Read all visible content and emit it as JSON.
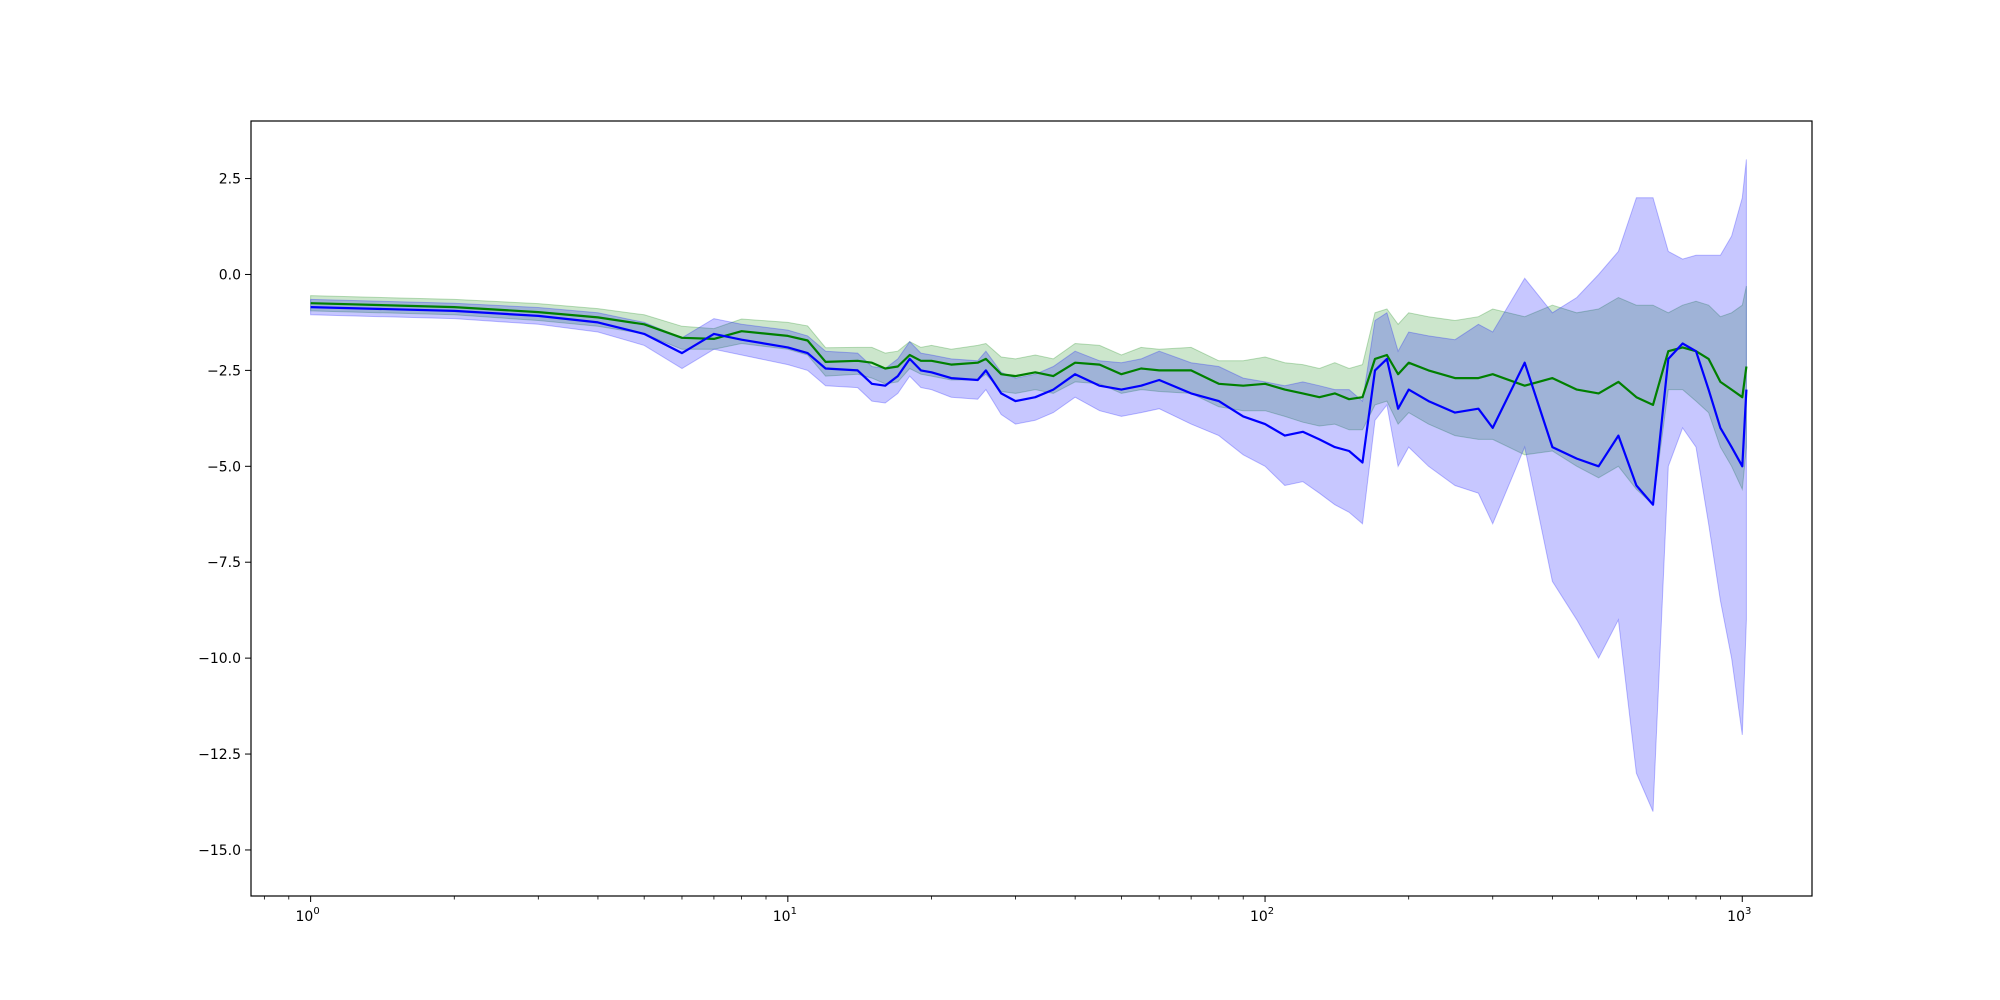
{
  "chart_data": {
    "type": "line",
    "title": "",
    "xlabel": "",
    "ylabel": "",
    "x_scale": "log",
    "xlim": [
      0.75,
      1400
    ],
    "ylim": [
      -16.2,
      4.0
    ],
    "grid": false,
    "legend": "none",
    "x_ticks": [
      {
        "value": 1,
        "base": "10",
        "exp": "0"
      },
      {
        "value": 10,
        "base": "10",
        "exp": "1"
      },
      {
        "value": 100,
        "base": "10",
        "exp": "2"
      },
      {
        "value": 1000,
        "base": "10",
        "exp": "3"
      }
    ],
    "y_ticks": [
      {
        "value": 2.5,
        "label": "2.5"
      },
      {
        "value": 0,
        "label": "0.0"
      },
      {
        "value": -2.5,
        "label": "−2.5"
      },
      {
        "value": -5,
        "label": "−5.0"
      },
      {
        "value": -7.5,
        "label": "−7.5"
      },
      {
        "value": -10,
        "label": "−10.0"
      },
      {
        "value": -12.5,
        "label": "−12.5"
      },
      {
        "value": -15,
        "label": "−15.0"
      }
    ],
    "series": [
      {
        "color": "#008000",
        "band_color": "#008000",
        "x": [
          1,
          2,
          3,
          4,
          5,
          6,
          7,
          8,
          10,
          11,
          12,
          14,
          15,
          16,
          17,
          18,
          19,
          20,
          22,
          25,
          26,
          28,
          30,
          33,
          36,
          40,
          45,
          50,
          55,
          60,
          70,
          80,
          90,
          100,
          110,
          120,
          130,
          140,
          150,
          160,
          170,
          180,
          190,
          200,
          220,
          250,
          280,
          300,
          350,
          400,
          450,
          500,
          550,
          600,
          650,
          700,
          750,
          800,
          850,
          900,
          950,
          1000,
          1020
        ],
        "values": [
          -0.75,
          -0.85,
          -0.98,
          -1.12,
          -1.3,
          -1.65,
          -1.68,
          -1.48,
          -1.6,
          -1.72,
          -2.28,
          -2.25,
          -2.3,
          -2.45,
          -2.4,
          -2.1,
          -2.25,
          -2.25,
          -2.35,
          -2.3,
          -2.2,
          -2.6,
          -2.65,
          -2.55,
          -2.65,
          -2.3,
          -2.35,
          -2.6,
          -2.45,
          -2.5,
          -2.5,
          -2.85,
          -2.9,
          -2.85,
          -3.0,
          -3.1,
          -3.2,
          -3.1,
          -3.25,
          -3.2,
          -2.2,
          -2.1,
          -2.6,
          -2.3,
          -2.5,
          -2.7,
          -2.7,
          -2.6,
          -2.9,
          -2.7,
          -3.0,
          -3.1,
          -2.8,
          -3.2,
          -3.4,
          -2.0,
          -1.9,
          -2.0,
          -2.2,
          -2.8,
          -3.0,
          -3.2,
          -2.4
        ],
        "lower": [
          -0.95,
          -1.05,
          -1.2,
          -1.35,
          -1.55,
          -1.95,
          -1.95,
          -1.8,
          -1.95,
          -2.1,
          -2.65,
          -2.6,
          -2.7,
          -2.85,
          -2.8,
          -2.45,
          -2.6,
          -2.65,
          -2.75,
          -2.75,
          -2.6,
          -3.05,
          -3.1,
          -3.0,
          -3.1,
          -2.8,
          -2.85,
          -3.1,
          -3.0,
          -3.05,
          -3.1,
          -3.45,
          -3.55,
          -3.55,
          -3.7,
          -3.85,
          -3.95,
          -3.9,
          -4.05,
          -4.05,
          -3.4,
          -3.3,
          -3.9,
          -3.6,
          -3.9,
          -4.2,
          -4.3,
          -4.3,
          -4.7,
          -4.6,
          -5.0,
          -5.3,
          -5.0,
          -5.6,
          -6.0,
          -3.0,
          -3.0,
          -3.3,
          -3.6,
          -4.5,
          -5.0,
          -5.6,
          -4.5
        ],
        "upper": [
          -0.55,
          -0.65,
          -0.76,
          -0.89,
          -1.05,
          -1.35,
          -1.41,
          -1.16,
          -1.25,
          -1.34,
          -1.91,
          -1.9,
          -1.9,
          -2.05,
          -2.0,
          -1.75,
          -1.9,
          -1.85,
          -1.95,
          -1.85,
          -1.8,
          -2.15,
          -2.2,
          -2.1,
          -2.2,
          -1.8,
          -1.85,
          -2.1,
          -1.9,
          -1.95,
          -1.9,
          -2.25,
          -2.25,
          -2.15,
          -2.3,
          -2.35,
          -2.45,
          -2.3,
          -2.45,
          -2.35,
          -1.0,
          -0.9,
          -1.3,
          -1.0,
          -1.1,
          -1.2,
          -1.1,
          -0.9,
          -1.1,
          -0.8,
          -1.0,
          -0.9,
          -0.6,
          -0.8,
          -0.8,
          -1.0,
          -0.8,
          -0.7,
          -0.8,
          -1.1,
          -1.0,
          -0.8,
          -0.3
        ]
      },
      {
        "color": "#0000ff",
        "band_color": "#0000ff",
        "x": [
          1,
          2,
          3,
          4,
          5,
          6,
          7,
          8,
          10,
          11,
          12,
          14,
          15,
          16,
          17,
          18,
          19,
          20,
          22,
          25,
          26,
          28,
          30,
          33,
          36,
          40,
          45,
          50,
          55,
          60,
          70,
          80,
          90,
          100,
          110,
          120,
          130,
          140,
          150,
          160,
          170,
          180,
          190,
          200,
          220,
          250,
          280,
          300,
          350,
          400,
          450,
          500,
          550,
          600,
          650,
          700,
          750,
          800,
          850,
          900,
          950,
          1000,
          1020
        ],
        "values": [
          -0.85,
          -0.95,
          -1.08,
          -1.25,
          -1.55,
          -2.05,
          -1.55,
          -1.7,
          -1.9,
          -2.05,
          -2.45,
          -2.5,
          -2.85,
          -2.9,
          -2.65,
          -2.2,
          -2.5,
          -2.55,
          -2.7,
          -2.75,
          -2.5,
          -3.1,
          -3.3,
          -3.2,
          -3.0,
          -2.6,
          -2.9,
          -3.0,
          -2.9,
          -2.75,
          -3.1,
          -3.3,
          -3.7,
          -3.9,
          -4.2,
          -4.1,
          -4.3,
          -4.5,
          -4.6,
          -4.9,
          -2.5,
          -2.2,
          -3.5,
          -3.0,
          -3.3,
          -3.6,
          -3.5,
          -4.0,
          -2.3,
          -4.5,
          -4.8,
          -5.0,
          -4.2,
          -5.5,
          -6.0,
          -2.2,
          -1.8,
          -2.0,
          -3.0,
          -4.0,
          -4.5,
          -5.0,
          -3.0
        ],
        "lower": [
          -1.05,
          -1.15,
          -1.3,
          -1.5,
          -1.85,
          -2.45,
          -1.95,
          -2.1,
          -2.35,
          -2.5,
          -2.9,
          -2.95,
          -3.3,
          -3.35,
          -3.1,
          -2.65,
          -2.95,
          -3.0,
          -3.2,
          -3.25,
          -3.0,
          -3.65,
          -3.9,
          -3.8,
          -3.6,
          -3.2,
          -3.55,
          -3.7,
          -3.6,
          -3.5,
          -3.9,
          -4.2,
          -4.7,
          -5.0,
          -5.5,
          -5.4,
          -5.7,
          -6.0,
          -6.2,
          -6.5,
          -3.8,
          -3.4,
          -5.0,
          -4.5,
          -5.0,
          -5.5,
          -5.7,
          -6.5,
          -4.5,
          -8.0,
          -9.0,
          -10.0,
          -9.0,
          -13.0,
          -14.0,
          -5.0,
          -4.0,
          -4.5,
          -6.5,
          -8.5,
          -10.0,
          -12.0,
          -9.0
        ],
        "upper": [
          -0.65,
          -0.75,
          -0.86,
          -1.0,
          -1.25,
          -1.65,
          -1.15,
          -1.3,
          -1.45,
          -1.6,
          -2.0,
          -2.05,
          -2.4,
          -2.45,
          -2.2,
          -1.75,
          -2.05,
          -2.1,
          -2.2,
          -2.25,
          -2.0,
          -2.55,
          -2.7,
          -2.6,
          -2.4,
          -2.0,
          -2.25,
          -2.3,
          -2.2,
          -2.0,
          -2.3,
          -2.4,
          -2.7,
          -2.8,
          -2.9,
          -2.8,
          -2.9,
          -3.0,
          -3.0,
          -3.3,
          -1.2,
          -1.0,
          -2.0,
          -1.5,
          -1.6,
          -1.7,
          -1.3,
          -1.5,
          -0.1,
          -1.0,
          -0.6,
          0.0,
          0.6,
          2.0,
          2.0,
          0.6,
          0.4,
          0.5,
          0.5,
          0.5,
          1.0,
          2.0,
          3.0
        ]
      }
    ]
  }
}
